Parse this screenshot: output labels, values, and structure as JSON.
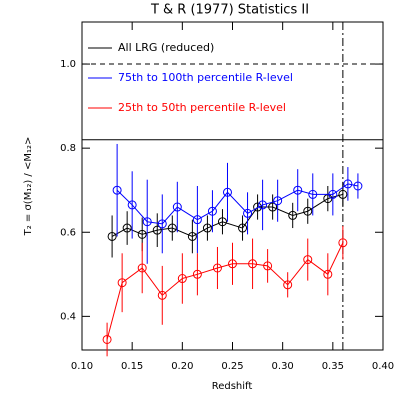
{
  "chart_data": {
    "type": "scatter",
    "title": "T & R (1977) Statistics II",
    "x_label": "Redshift",
    "y_label": "T₂ = σ(M₁₂) / <M₁₂>",
    "xlim": [
      0.1,
      0.4
    ],
    "ylim": [
      0.32,
      1.1
    ],
    "xticks": [
      {
        "value": 0.1,
        "label": "0.10"
      },
      {
        "value": 0.15,
        "label": "0.15"
      },
      {
        "value": 0.2,
        "label": "0.20"
      },
      {
        "value": 0.25,
        "label": "0.25"
      },
      {
        "value": 0.3,
        "label": "0.30"
      },
      {
        "value": 0.35,
        "label": "0.35"
      },
      {
        "value": 0.4,
        "label": "0.40"
      }
    ],
    "yticks": [
      0.4,
      0.6,
      0.8,
      {
        "value": 1.0,
        "label": "1.0"
      }
    ],
    "reference_lines": {
      "dashed_y": 1.0,
      "solid_y": 0.82,
      "dashdot_x": 0.36
    },
    "series": [
      {
        "name": "All LRG (reduced)",
        "color": "#000000",
        "x": [
          0.13,
          0.145,
          0.16,
          0.175,
          0.19,
          0.21,
          0.225,
          0.24,
          0.26,
          0.275,
          0.29,
          0.31,
          0.325,
          0.345,
          0.36
        ],
        "values": [
          0.59,
          0.61,
          0.595,
          0.605,
          0.61,
          0.59,
          0.61,
          0.625,
          0.61,
          0.66,
          0.66,
          0.64,
          0.65,
          0.68,
          0.69
        ],
        "errors": [
          0.05,
          0.04,
          0.04,
          0.04,
          0.03,
          0.04,
          0.03,
          0.03,
          0.03,
          0.03,
          0.03,
          0.03,
          0.03,
          0.03,
          0.03
        ]
      },
      {
        "name": "75th to 100th percentile R-level",
        "color": "#0000ff",
        "x": [
          0.135,
          0.15,
          0.165,
          0.18,
          0.195,
          0.215,
          0.23,
          0.245,
          0.265,
          0.28,
          0.295,
          0.315,
          0.33,
          0.35,
          0.365,
          0.375
        ],
        "values": [
          0.7,
          0.665,
          0.625,
          0.62,
          0.66,
          0.63,
          0.65,
          0.695,
          0.645,
          0.665,
          0.675,
          0.7,
          0.69,
          0.69,
          0.715,
          0.71
        ],
        "errors": [
          0.11,
          0.08,
          0.1,
          0.07,
          0.06,
          0.08,
          0.05,
          0.07,
          0.05,
          0.06,
          0.05,
          0.05,
          0.05,
          0.05,
          0.04,
          0.03
        ]
      },
      {
        "name": "25th to  50th percentile R-level",
        "color": "#ff0000",
        "x": [
          0.125,
          0.14,
          0.16,
          0.18,
          0.2,
          0.215,
          0.235,
          0.25,
          0.27,
          0.285,
          0.305,
          0.325,
          0.345,
          0.36
        ],
        "values": [
          0.345,
          0.48,
          0.515,
          0.45,
          0.49,
          0.5,
          0.515,
          0.525,
          0.525,
          0.52,
          0.475,
          0.535,
          0.5,
          0.575
        ],
        "errors": [
          0.04,
          0.07,
          0.06,
          0.07,
          0.06,
          0.05,
          0.05,
          0.05,
          0.06,
          0.04,
          0.03,
          0.05,
          0.05,
          0.04
        ]
      }
    ],
    "legend": "top-left"
  }
}
